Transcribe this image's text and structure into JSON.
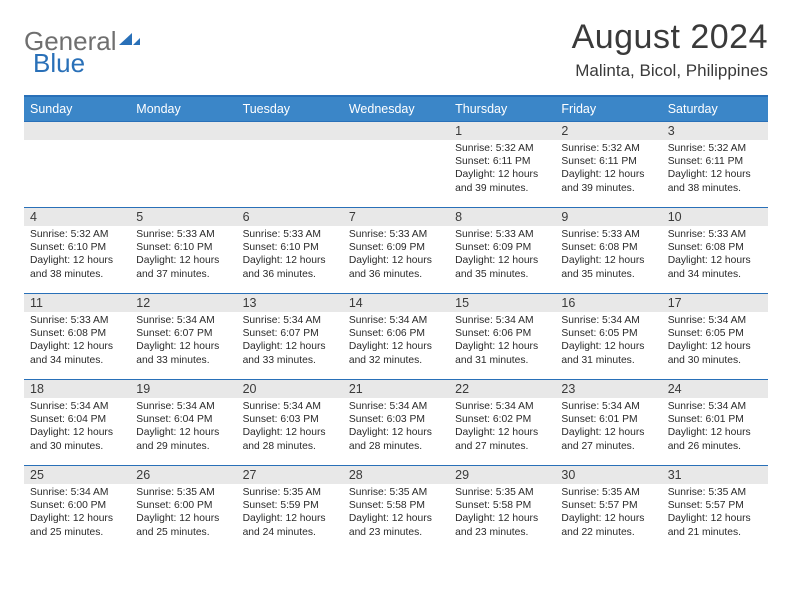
{
  "logo": {
    "word1": "General",
    "word2": "Blue"
  },
  "title": "August 2024",
  "location": "Malinta, Bicol, Philippines",
  "day_headers": [
    "Sunday",
    "Monday",
    "Tuesday",
    "Wednesday",
    "Thursday",
    "Friday",
    "Saturday"
  ],
  "colors": {
    "header_bg": "#3b86c8",
    "accent": "#2970b8",
    "daynum_bg": "#e8e8e8",
    "text": "#3a3a3a",
    "logo_gray": "#6f6f6f"
  },
  "weeks": [
    [
      null,
      null,
      null,
      null,
      {
        "n": "1",
        "sr": "5:32 AM",
        "ss": "6:11 PM",
        "dl": "12 hours and 39 minutes."
      },
      {
        "n": "2",
        "sr": "5:32 AM",
        "ss": "6:11 PM",
        "dl": "12 hours and 39 minutes."
      },
      {
        "n": "3",
        "sr": "5:32 AM",
        "ss": "6:11 PM",
        "dl": "12 hours and 38 minutes."
      }
    ],
    [
      {
        "n": "4",
        "sr": "5:32 AM",
        "ss": "6:10 PM",
        "dl": "12 hours and 38 minutes."
      },
      {
        "n": "5",
        "sr": "5:33 AM",
        "ss": "6:10 PM",
        "dl": "12 hours and 37 minutes."
      },
      {
        "n": "6",
        "sr": "5:33 AM",
        "ss": "6:10 PM",
        "dl": "12 hours and 36 minutes."
      },
      {
        "n": "7",
        "sr": "5:33 AM",
        "ss": "6:09 PM",
        "dl": "12 hours and 36 minutes."
      },
      {
        "n": "8",
        "sr": "5:33 AM",
        "ss": "6:09 PM",
        "dl": "12 hours and 35 minutes."
      },
      {
        "n": "9",
        "sr": "5:33 AM",
        "ss": "6:08 PM",
        "dl": "12 hours and 35 minutes."
      },
      {
        "n": "10",
        "sr": "5:33 AM",
        "ss": "6:08 PM",
        "dl": "12 hours and 34 minutes."
      }
    ],
    [
      {
        "n": "11",
        "sr": "5:33 AM",
        "ss": "6:08 PM",
        "dl": "12 hours and 34 minutes."
      },
      {
        "n": "12",
        "sr": "5:34 AM",
        "ss": "6:07 PM",
        "dl": "12 hours and 33 minutes."
      },
      {
        "n": "13",
        "sr": "5:34 AM",
        "ss": "6:07 PM",
        "dl": "12 hours and 33 minutes."
      },
      {
        "n": "14",
        "sr": "5:34 AM",
        "ss": "6:06 PM",
        "dl": "12 hours and 32 minutes."
      },
      {
        "n": "15",
        "sr": "5:34 AM",
        "ss": "6:06 PM",
        "dl": "12 hours and 31 minutes."
      },
      {
        "n": "16",
        "sr": "5:34 AM",
        "ss": "6:05 PM",
        "dl": "12 hours and 31 minutes."
      },
      {
        "n": "17",
        "sr": "5:34 AM",
        "ss": "6:05 PM",
        "dl": "12 hours and 30 minutes."
      }
    ],
    [
      {
        "n": "18",
        "sr": "5:34 AM",
        "ss": "6:04 PM",
        "dl": "12 hours and 30 minutes."
      },
      {
        "n": "19",
        "sr": "5:34 AM",
        "ss": "6:04 PM",
        "dl": "12 hours and 29 minutes."
      },
      {
        "n": "20",
        "sr": "5:34 AM",
        "ss": "6:03 PM",
        "dl": "12 hours and 28 minutes."
      },
      {
        "n": "21",
        "sr": "5:34 AM",
        "ss": "6:03 PM",
        "dl": "12 hours and 28 minutes."
      },
      {
        "n": "22",
        "sr": "5:34 AM",
        "ss": "6:02 PM",
        "dl": "12 hours and 27 minutes."
      },
      {
        "n": "23",
        "sr": "5:34 AM",
        "ss": "6:01 PM",
        "dl": "12 hours and 27 minutes."
      },
      {
        "n": "24",
        "sr": "5:34 AM",
        "ss": "6:01 PM",
        "dl": "12 hours and 26 minutes."
      }
    ],
    [
      {
        "n": "25",
        "sr": "5:34 AM",
        "ss": "6:00 PM",
        "dl": "12 hours and 25 minutes."
      },
      {
        "n": "26",
        "sr": "5:35 AM",
        "ss": "6:00 PM",
        "dl": "12 hours and 25 minutes."
      },
      {
        "n": "27",
        "sr": "5:35 AM",
        "ss": "5:59 PM",
        "dl": "12 hours and 24 minutes."
      },
      {
        "n": "28",
        "sr": "5:35 AM",
        "ss": "5:58 PM",
        "dl": "12 hours and 23 minutes."
      },
      {
        "n": "29",
        "sr": "5:35 AM",
        "ss": "5:58 PM",
        "dl": "12 hours and 23 minutes."
      },
      {
        "n": "30",
        "sr": "5:35 AM",
        "ss": "5:57 PM",
        "dl": "12 hours and 22 minutes."
      },
      {
        "n": "31",
        "sr": "5:35 AM",
        "ss": "5:57 PM",
        "dl": "12 hours and 21 minutes."
      }
    ]
  ],
  "labels": {
    "sunrise": "Sunrise: ",
    "sunset": "Sunset: ",
    "daylight": "Daylight: "
  }
}
